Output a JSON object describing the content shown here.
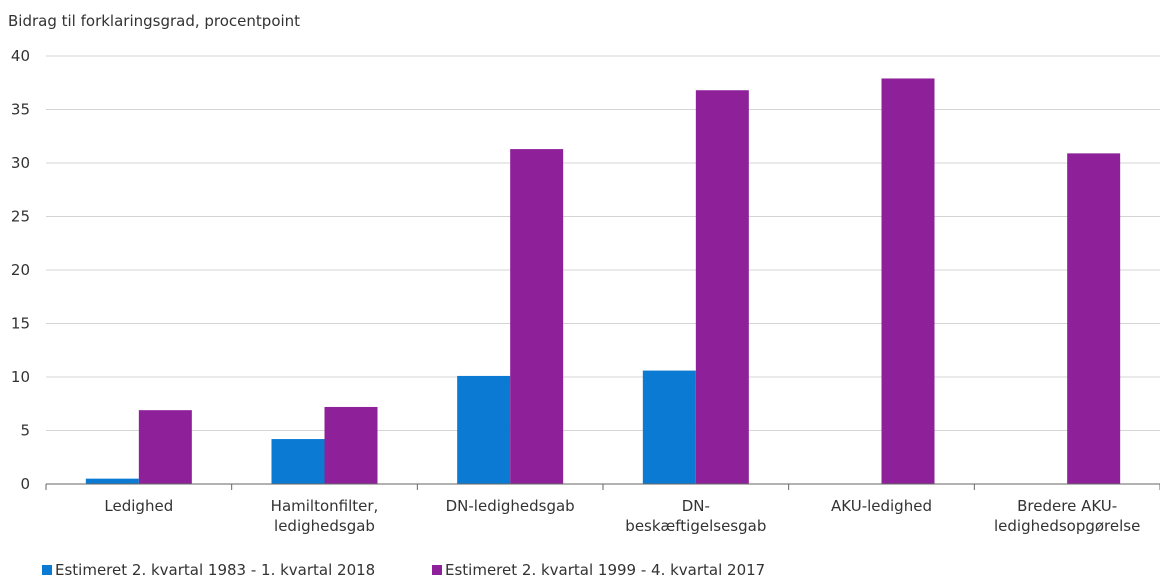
{
  "chart_data": {
    "type": "bar",
    "title": "",
    "xlabel": "",
    "ylabel": "Bidrag til forklaringsgrad, procentpoint",
    "ylim": [
      0,
      40
    ],
    "yticks": [
      0,
      5,
      10,
      15,
      20,
      25,
      30,
      35,
      40
    ],
    "grid": true,
    "legend_position": "bottom-left",
    "categories": [
      [
        "Ledighed"
      ],
      [
        "Hamiltonfilter,",
        "ledighedsgab"
      ],
      [
        "DN-ledighedsgab"
      ],
      [
        "DN-",
        "beskæftigelsesgab"
      ],
      [
        "AKU-ledighed"
      ],
      [
        "Bredere AKU-",
        "ledighedsopgørelse"
      ]
    ],
    "series": [
      {
        "name": "Estimeret 2. kvartal 1983 - 1. kvartal 2018",
        "color": "#0a7ad2",
        "values": [
          0.5,
          4.2,
          10.1,
          10.6,
          null,
          null
        ]
      },
      {
        "name": "Estimeret 2. kvartal 1999 - 4. kvartal 2017",
        "color": "#8e2199",
        "values": [
          6.9,
          7.2,
          31.3,
          36.8,
          37.9,
          30.9
        ]
      }
    ]
  }
}
